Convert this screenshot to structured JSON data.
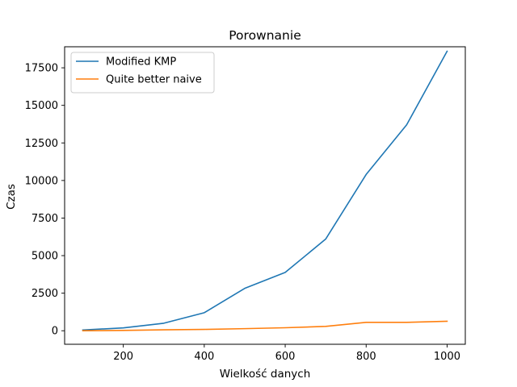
{
  "chart_data": {
    "type": "line",
    "title": "Porownanie",
    "xlabel": "Wielkość danych",
    "ylabel": "Czas",
    "xlim": [
      55,
      1045
    ],
    "ylim": [
      -900,
      18900
    ],
    "xticks": [
      200,
      400,
      600,
      800,
      1000
    ],
    "yticks": [
      0,
      2500,
      5000,
      7500,
      10000,
      12500,
      15000,
      17500
    ],
    "grid": false,
    "legend_position": "top-left",
    "series": [
      {
        "name": "Modified KMP",
        "color": "#1f77b4",
        "x": [
          100,
          200,
          300,
          400,
          500,
          600,
          700,
          800,
          900,
          1000
        ],
        "y": [
          50,
          190,
          500,
          1200,
          2820,
          3880,
          6100,
          10400,
          13700,
          18600
        ]
      },
      {
        "name": "Quite better naive",
        "color": "#ff7f0e",
        "x": [
          100,
          200,
          300,
          400,
          500,
          600,
          700,
          800,
          900,
          1000
        ],
        "y": [
          0,
          20,
          60,
          90,
          140,
          200,
          290,
          560,
          560,
          630
        ]
      }
    ]
  }
}
